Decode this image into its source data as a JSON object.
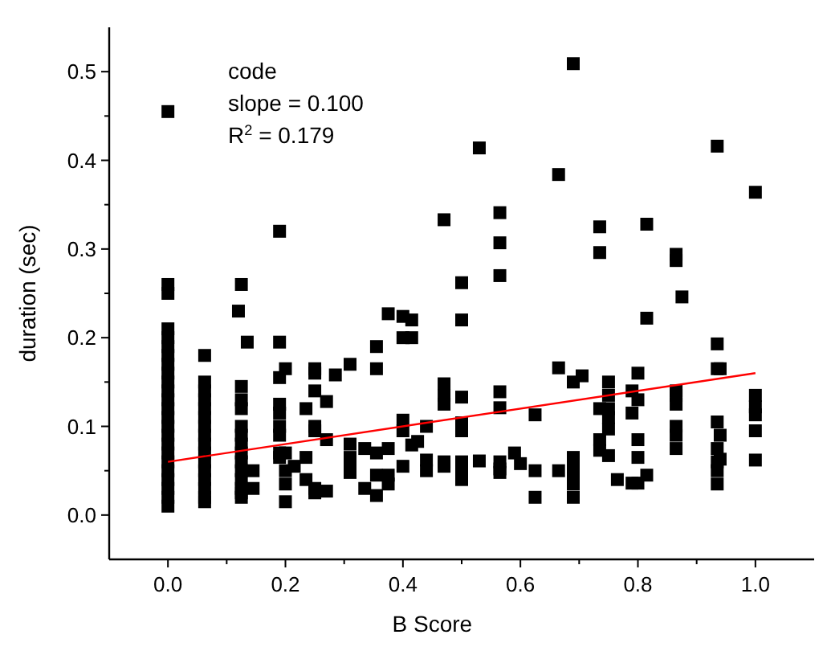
{
  "chart_data": {
    "type": "scatter",
    "xlabel": "B Score",
    "ylabel": "duration (sec)",
    "marker": "square",
    "xlim": [
      -0.1,
      1.1
    ],
    "ylim": [
      -0.05,
      0.55
    ],
    "xticks": [
      {
        "value": 0,
        "label": "0.0"
      },
      {
        "value": 0.1,
        "label": null
      },
      {
        "value": 0.2,
        "label": "0.2"
      },
      {
        "value": 0.3,
        "label": null
      },
      {
        "value": 0.4,
        "label": "0.4"
      },
      {
        "value": 0.5,
        "label": null
      },
      {
        "value": 0.6,
        "label": "0.6"
      },
      {
        "value": 0.7,
        "label": null
      },
      {
        "value": 0.8,
        "label": "0.8"
      },
      {
        "value": 0.9,
        "label": null
      },
      {
        "value": 1,
        "label": "1.0"
      }
    ],
    "yticks": [
      {
        "value": 0,
        "label": "0.0"
      },
      {
        "value": 0.05,
        "label": null
      },
      {
        "value": 0.1,
        "label": "0.1"
      },
      {
        "value": 0.15,
        "label": null
      },
      {
        "value": 0.2,
        "label": "0.2"
      },
      {
        "value": 0.25,
        "label": null
      },
      {
        "value": 0.3,
        "label": "0.3"
      },
      {
        "value": 0.35,
        "label": null
      },
      {
        "value": 0.4,
        "label": "0.4"
      },
      {
        "value": 0.45,
        "label": null
      },
      {
        "value": 0.5,
        "label": "0.5"
      }
    ],
    "annotations": [
      "code",
      "slope = 0.100",
      "R$^{2}$ = 0.179"
    ],
    "series": [
      {
        "color": "#000000",
        "x": [
          0,
          0,
          0,
          0,
          0,
          0,
          0,
          0,
          0,
          0,
          0,
          0,
          0,
          0,
          0,
          0,
          0,
          0,
          0,
          0,
          0,
          0,
          0,
          0,
          0.0625,
          0.0625,
          0.0625,
          0.0625,
          0.0625,
          0.0625,
          0.0625,
          0.0625,
          0.0625,
          0.0625,
          0.0625,
          0.0625,
          0.0625,
          0.0625,
          0.0625,
          0.0625,
          0.125,
          0.125,
          0.125,
          0.125,
          0.125,
          0.125,
          0.125,
          0.125,
          0.125,
          0.125,
          0.125,
          0.125,
          0.125,
          0.125,
          0.12,
          0.135,
          0.145,
          0.145,
          0.19,
          0.19,
          0.19,
          0.19,
          0.19,
          0.19,
          0.19,
          0.19,
          0.19,
          0.2,
          0.2,
          0.2,
          0.2,
          0.2,
          0.215,
          0.235,
          0.235,
          0.235,
          0.25,
          0.25,
          0.25,
          0.25,
          0.25,
          0.25,
          0.25,
          0.27,
          0.27,
          0.27,
          0.285,
          0.31,
          0.31,
          0.31,
          0.31,
          0.31,
          0.335,
          0.335,
          0.355,
          0.355,
          0.355,
          0.355,
          0.355,
          0.375,
          0.375,
          0.375,
          0.375,
          0.4,
          0.4,
          0.4,
          0.4,
          0.4,
          0.415,
          0.415,
          0.415,
          0.425,
          0.44,
          0.44,
          0.44,
          0.47,
          0.47,
          0.47,
          0.47,
          0.47,
          0.47,
          0.5,
          0.5,
          0.5,
          0.5,
          0.5,
          0.5,
          0.5,
          0.5,
          0.53,
          0.53,
          0.565,
          0.565,
          0.565,
          0.565,
          0.565,
          0.565,
          0.565,
          0.565,
          0.59,
          0.6,
          0.625,
          0.625,
          0.625,
          0.665,
          0.665,
          0.665,
          0.69,
          0.69,
          0.69,
          0.69,
          0.69,
          0.69,
          0.69,
          0.705,
          0.735,
          0.735,
          0.735,
          0.735,
          0.735,
          0.75,
          0.75,
          0.75,
          0.75,
          0.75,
          0.75,
          0.765,
          0.79,
          0.79,
          0.79,
          0.8,
          0.8,
          0.8,
          0.8,
          0.8,
          0.815,
          0.815,
          0.815,
          0.865,
          0.865,
          0.865,
          0.865,
          0.865,
          0.865,
          0.865,
          0.865,
          0.875,
          0.935,
          0.935,
          0.935,
          0.935,
          0.935,
          0.935,
          0.935,
          0.935,
          0.94,
          0.94,
          0.94,
          1,
          1,
          1,
          1,
          1,
          1
        ],
        "values": [
          0.455,
          0.26,
          0.25,
          0.21,
          0.2,
          0.19,
          0.18,
          0.17,
          0.16,
          0.15,
          0.14,
          0.13,
          0.12,
          0.11,
          0.1,
          0.09,
          0.08,
          0.07,
          0.06,
          0.05,
          0.04,
          0.03,
          0.02,
          0.01,
          0.18,
          0.15,
          0.14,
          0.13,
          0.12,
          0.11,
          0.1,
          0.09,
          0.08,
          0.07,
          0.06,
          0.05,
          0.04,
          0.03,
          0.02,
          0.015,
          0.26,
          0.145,
          0.13,
          0.12,
          0.1,
          0.09,
          0.08,
          0.07,
          0.06,
          0.05,
          0.04,
          0.03,
          0.025,
          0.02,
          0.23,
          0.195,
          0.05,
          0.03,
          0.32,
          0.195,
          0.155,
          0.125,
          0.115,
          0.1,
          0.09,
          0.07,
          0.065,
          0.165,
          0.07,
          0.05,
          0.035,
          0.015,
          0.055,
          0.12,
          0.065,
          0.04,
          0.165,
          0.16,
          0.14,
          0.1,
          0.095,
          0.03,
          0.025,
          0.128,
          0.085,
          0.027,
          0.158,
          0.17,
          0.08,
          0.065,
          0.055,
          0.048,
          0.075,
          0.03,
          0.19,
          0.165,
          0.07,
          0.045,
          0.022,
          0.227,
          0.075,
          0.045,
          0.035,
          0.224,
          0.2,
          0.107,
          0.095,
          0.055,
          0.22,
          0.2,
          0.079,
          0.083,
          0.1,
          0.062,
          0.05,
          0.333,
          0.148,
          0.135,
          0.125,
          0.06,
          0.055,
          0.262,
          0.22,
          0.133,
          0.104,
          0.095,
          0.06,
          0.05,
          0.04,
          0.414,
          0.061,
          0.341,
          0.307,
          0.27,
          0.139,
          0.121,
          0.06,
          0.052,
          0.048,
          0.07,
          0.058,
          0.113,
          0.05,
          0.02,
          0.384,
          0.166,
          0.05,
          0.509,
          0.15,
          0.065,
          0.055,
          0.045,
          0.035,
          0.02,
          0.157,
          0.325,
          0.296,
          0.12,
          0.085,
          0.073,
          0.15,
          0.135,
          0.12,
          0.11,
          0.097,
          0.067,
          0.04,
          0.14,
          0.115,
          0.036,
          0.16,
          0.13,
          0.085,
          0.065,
          0.036,
          0.328,
          0.222,
          0.045,
          0.294,
          0.287,
          0.14,
          0.135,
          0.125,
          0.1,
          0.09,
          0.075,
          0.246,
          0.416,
          0.193,
          0.165,
          0.105,
          0.075,
          0.06,
          0.05,
          0.035,
          0.165,
          0.09,
          0.063,
          0.364,
          0.135,
          0.122,
          0.113,
          0.095,
          0.062
        ]
      },
      {
        "type": "line",
        "color": "#ff0000",
        "marker": "none",
        "x": [
          0,
          1
        ],
        "values": [
          0.06,
          0.16
        ]
      }
    ]
  }
}
